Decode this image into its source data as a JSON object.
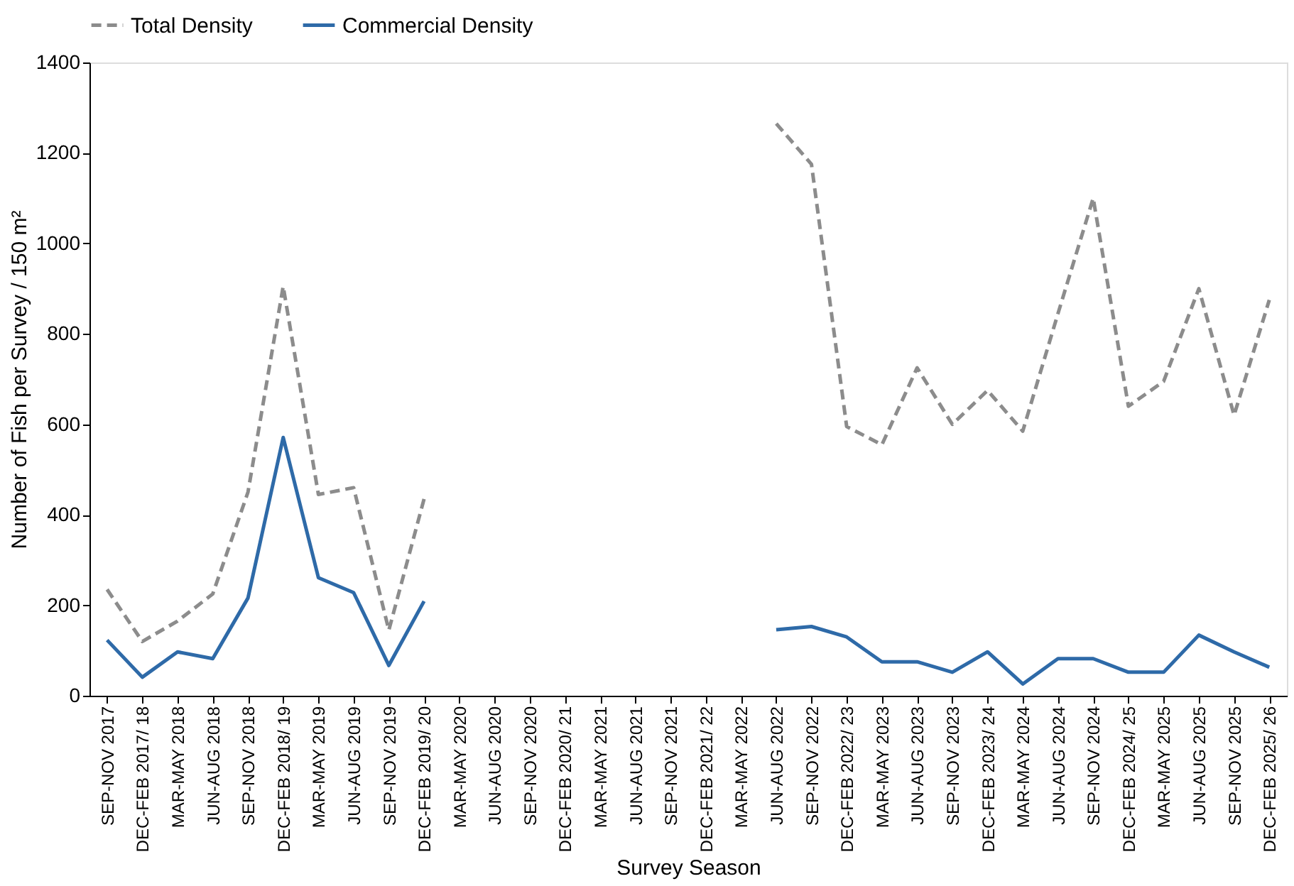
{
  "chart_data": {
    "type": "line",
    "xlabel": "Survey Season",
    "ylabel": "Number of Fish per Survey / 150 m²",
    "categories": [
      "SEP-NOV 2017",
      "DEC-FEB 2017/ 18",
      "MAR-MAY 2018",
      "JUN-AUG 2018",
      "SEP-NOV 2018",
      "DEC-FEB 2018/ 19",
      "MAR-MAY 2019",
      "JUN-AUG 2019",
      "SEP-NOV 2019",
      "DEC-FEB 2019/ 20",
      "MAR-MAY 2020",
      "JUN-AUG 2020",
      "SEP-NOV 2020",
      "DEC-FEB 2020/ 21",
      "MAR-MAY 2021",
      "JUN-AUG 2021",
      "SEP-NOV 2021",
      "DEC-FEB 2021/ 22",
      "MAR-MAY 2022",
      "JUN-AUG 2022",
      "SEP-NOV 2022",
      "DEC-FEB 2022/ 23",
      "MAR-MAY 2023",
      "JUN-AUG 2023",
      "SEP-NOV 2023",
      "DEC-FEB 2023/ 24",
      "MAR-MAY 2024",
      "JUN-AUG 2024",
      "SEP-NOV 2024",
      "DEC-FEB 2024/ 25",
      "MAR-MAY 2025",
      "JUN-AUG 2025",
      "SEP-NOV 2025",
      "DEC-FEB 2025/ 26"
    ],
    "series": [
      {
        "name": "Total Density",
        "color": "#8c8c8c",
        "line_style": "dashed",
        "values": [
          235,
          120,
          165,
          225,
          450,
          905,
          445,
          460,
          145,
          435,
          null,
          null,
          null,
          null,
          null,
          null,
          null,
          null,
          null,
          1265,
          1175,
          595,
          555,
          725,
          600,
          675,
          585,
          845,
          1100,
          640,
          695,
          900,
          620,
          875
        ]
      },
      {
        "name": "Commercial Density",
        "color": "#2e6aa8",
        "line_style": "solid",
        "values": [
          123,
          41,
          97,
          82,
          216,
          571,
          261,
          228,
          67,
          209,
          null,
          null,
          null,
          null,
          null,
          null,
          null,
          null,
          null,
          146,
          153,
          130,
          75,
          75,
          52,
          97,
          26,
          82,
          82,
          52,
          52,
          134,
          97,
          63
        ]
      }
    ],
    "ylim": [
      0,
      1400
    ],
    "yticks": [
      0,
      200,
      400,
      600,
      800,
      1000,
      1200,
      1400
    ],
    "grid": false,
    "legend": "top",
    "marker": "none"
  }
}
